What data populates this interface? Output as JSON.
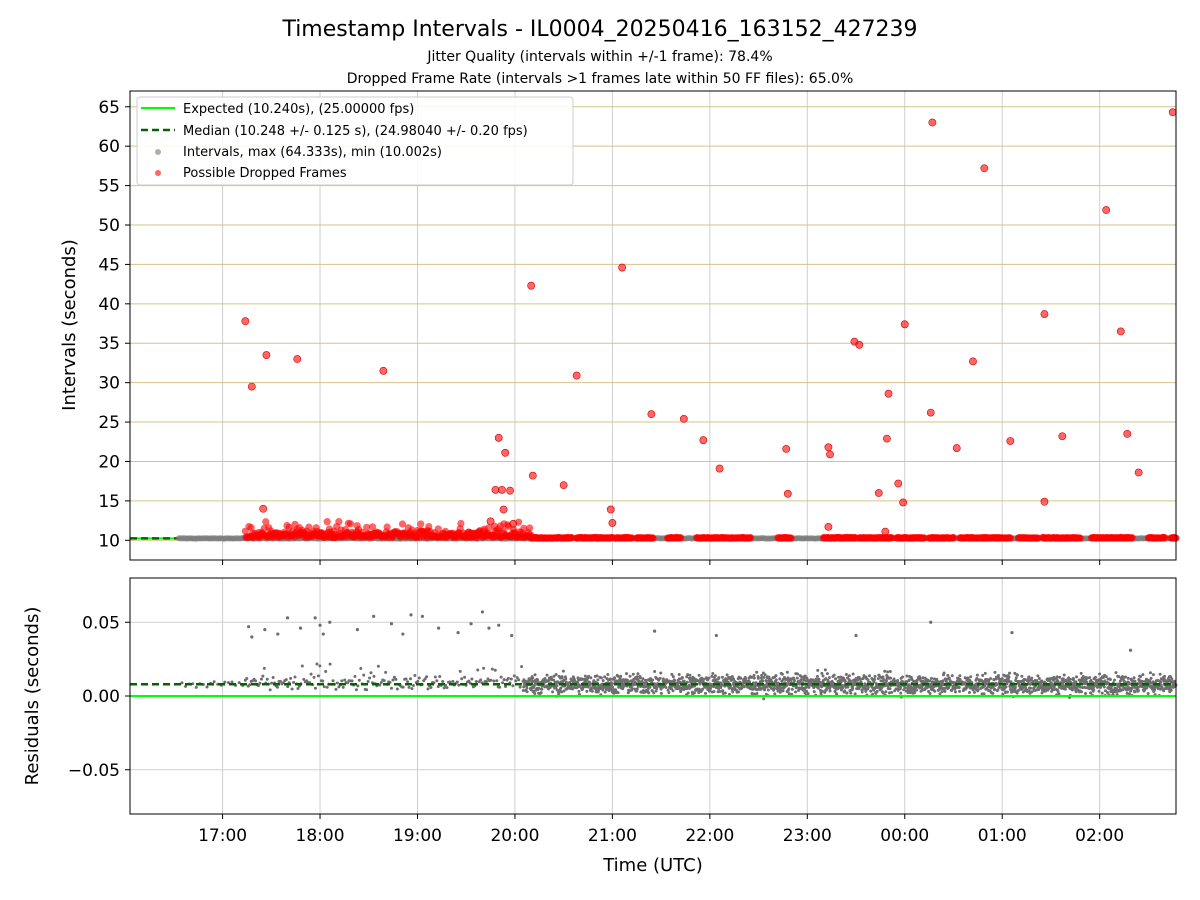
{
  "chart_data": [
    {
      "panel": "intervals",
      "type": "scatter",
      "title": "Timestamp Intervals - IL0004_20250416_163152_427239",
      "subtitles": [
        "Jitter Quality (intervals within +/-1 frame): 78.4%",
        "Dropped Frame Rate (intervals >1 frames late within 50 FF files): 65.0%"
      ],
      "ylabel": "Intervals (seconds)",
      "ylim": [
        7.5,
        67
      ],
      "yticks": [
        "10",
        "15",
        "20",
        "25",
        "30",
        "35",
        "40",
        "45",
        "50",
        "55",
        "60",
        "65"
      ],
      "ytick_values": [
        10,
        15,
        20,
        25,
        30,
        35,
        40,
        45,
        50,
        55,
        60,
        65
      ],
      "grid": true,
      "legend_placement": "upper-left",
      "legend": [
        "Expected (10.240s), (25.00000 fps)",
        "Median (10.248 +/- 0.125 s), (24.98040 +/- 0.20 fps)",
        "Intervals, max (64.333s), min (10.002s)",
        "Possible Dropped Frames"
      ],
      "expected": 10.24,
      "median": 10.248,
      "colors": {
        "expected": "#00ff00",
        "median": "#006400",
        "intervals": "#a0a0a0",
        "dropped": "#ff0000",
        "hgrid": "#d6c38a",
        "vgrid": "#cfcfcf"
      },
      "dropped_frames": [
        {
          "t": "17:14",
          "y": 37.8
        },
        {
          "t": "17:18",
          "y": 29.5
        },
        {
          "t": "17:25",
          "y": 14.0
        },
        {
          "t": "17:27",
          "y": 33.5
        },
        {
          "t": "17:46",
          "y": 33.0
        },
        {
          "t": "18:39",
          "y": 31.5
        },
        {
          "t": "19:45",
          "y": 12.4
        },
        {
          "t": "19:48",
          "y": 16.4
        },
        {
          "t": "19:50",
          "y": 23.0
        },
        {
          "t": "19:52",
          "y": 16.4
        },
        {
          "t": "19:53",
          "y": 13.9
        },
        {
          "t": "19:54",
          "y": 21.1
        },
        {
          "t": "19:57",
          "y": 16.3
        },
        {
          "t": "19:59",
          "y": 12.1
        },
        {
          "t": "20:10",
          "y": 42.3
        },
        {
          "t": "20:11",
          "y": 18.2
        },
        {
          "t": "20:30",
          "y": 17.0
        },
        {
          "t": "20:38",
          "y": 30.9
        },
        {
          "t": "20:59",
          "y": 13.9
        },
        {
          "t": "21:00",
          "y": 12.2
        },
        {
          "t": "21:06",
          "y": 44.6
        },
        {
          "t": "21:24",
          "y": 26.0
        },
        {
          "t": "21:44",
          "y": 25.4
        },
        {
          "t": "21:56",
          "y": 22.7
        },
        {
          "t": "22:06",
          "y": 19.1
        },
        {
          "t": "22:47",
          "y": 21.6
        },
        {
          "t": "22:48",
          "y": 15.9
        },
        {
          "t": "23:13",
          "y": 21.8
        },
        {
          "t": "23:14",
          "y": 20.9
        },
        {
          "t": "23:13",
          "y": 11.7
        },
        {
          "t": "23:29",
          "y": 35.2
        },
        {
          "t": "23:32",
          "y": 34.8
        },
        {
          "t": "23:44",
          "y": 16.0
        },
        {
          "t": "23:48",
          "y": 11.1
        },
        {
          "t": "23:49",
          "y": 22.9
        },
        {
          "t": "23:50",
          "y": 28.6
        },
        {
          "t": "23:56",
          "y": 17.2
        },
        {
          "t": "23:59",
          "y": 14.8
        },
        {
          "t": "00:00",
          "y": 37.4
        },
        {
          "t": "00:16",
          "y": 26.2
        },
        {
          "t": "00:17",
          "y": 63.0
        },
        {
          "t": "00:32",
          "y": 21.7
        },
        {
          "t": "00:42",
          "y": 32.7
        },
        {
          "t": "00:49",
          "y": 57.2
        },
        {
          "t": "01:05",
          "y": 22.6
        },
        {
          "t": "01:26",
          "y": 38.7
        },
        {
          "t": "01:26",
          "y": 14.9
        },
        {
          "t": "01:37",
          "y": 23.2
        },
        {
          "t": "02:04",
          "y": 51.9
        },
        {
          "t": "02:13",
          "y": 36.5
        },
        {
          "t": "02:17",
          "y": 23.5
        },
        {
          "t": "02:24",
          "y": 18.6
        },
        {
          "t": "02:45",
          "y": 64.3
        }
      ]
    },
    {
      "panel": "residuals",
      "type": "scatter",
      "xlabel": "Time (UTC)",
      "ylabel": "Residuals (seconds)",
      "ylim": [
        -0.08,
        0.08
      ],
      "yticks": [
        "−0.05",
        "0.00",
        "0.05"
      ],
      "ytick_values": [
        -0.05,
        0,
        0.05
      ],
      "xticks": [
        "17:00",
        "18:00",
        "19:00",
        "20:00",
        "21:00",
        "22:00",
        "23:00",
        "00:00",
        "01:00",
        "02:00"
      ],
      "xlim": [
        "16:03",
        "02:47"
      ],
      "expected_residual": 0.0,
      "median_residual": 0.008,
      "outliers": [
        {
          "t": "17:16",
          "y": 0.047
        },
        {
          "t": "17:18",
          "y": 0.04
        },
        {
          "t": "17:26",
          "y": 0.045
        },
        {
          "t": "17:34",
          "y": 0.042
        },
        {
          "t": "17:40",
          "y": 0.053
        },
        {
          "t": "17:48",
          "y": 0.046
        },
        {
          "t": "17:57",
          "y": 0.053
        },
        {
          "t": "18:00",
          "y": 0.048
        },
        {
          "t": "18:02",
          "y": 0.042
        },
        {
          "t": "18:06",
          "y": 0.05
        },
        {
          "t": "18:23",
          "y": 0.045
        },
        {
          "t": "18:33",
          "y": 0.054
        },
        {
          "t": "18:44",
          "y": 0.049
        },
        {
          "t": "18:51",
          "y": 0.042
        },
        {
          "t": "18:56",
          "y": 0.055
        },
        {
          "t": "19:03",
          "y": 0.054
        },
        {
          "t": "19:13",
          "y": 0.046
        },
        {
          "t": "19:25",
          "y": 0.043
        },
        {
          "t": "19:33",
          "y": 0.049
        },
        {
          "t": "19:40",
          "y": 0.057
        },
        {
          "t": "19:44",
          "y": 0.046
        },
        {
          "t": "19:50",
          "y": 0.048
        },
        {
          "t": "19:58",
          "y": 0.041
        },
        {
          "t": "21:26",
          "y": 0.044
        },
        {
          "t": "22:04",
          "y": 0.041
        },
        {
          "t": "23:30",
          "y": 0.041
        },
        {
          "t": "00:16",
          "y": 0.05
        },
        {
          "t": "01:06",
          "y": 0.043
        },
        {
          "t": "02:19",
          "y": 0.031
        }
      ]
    }
  ]
}
